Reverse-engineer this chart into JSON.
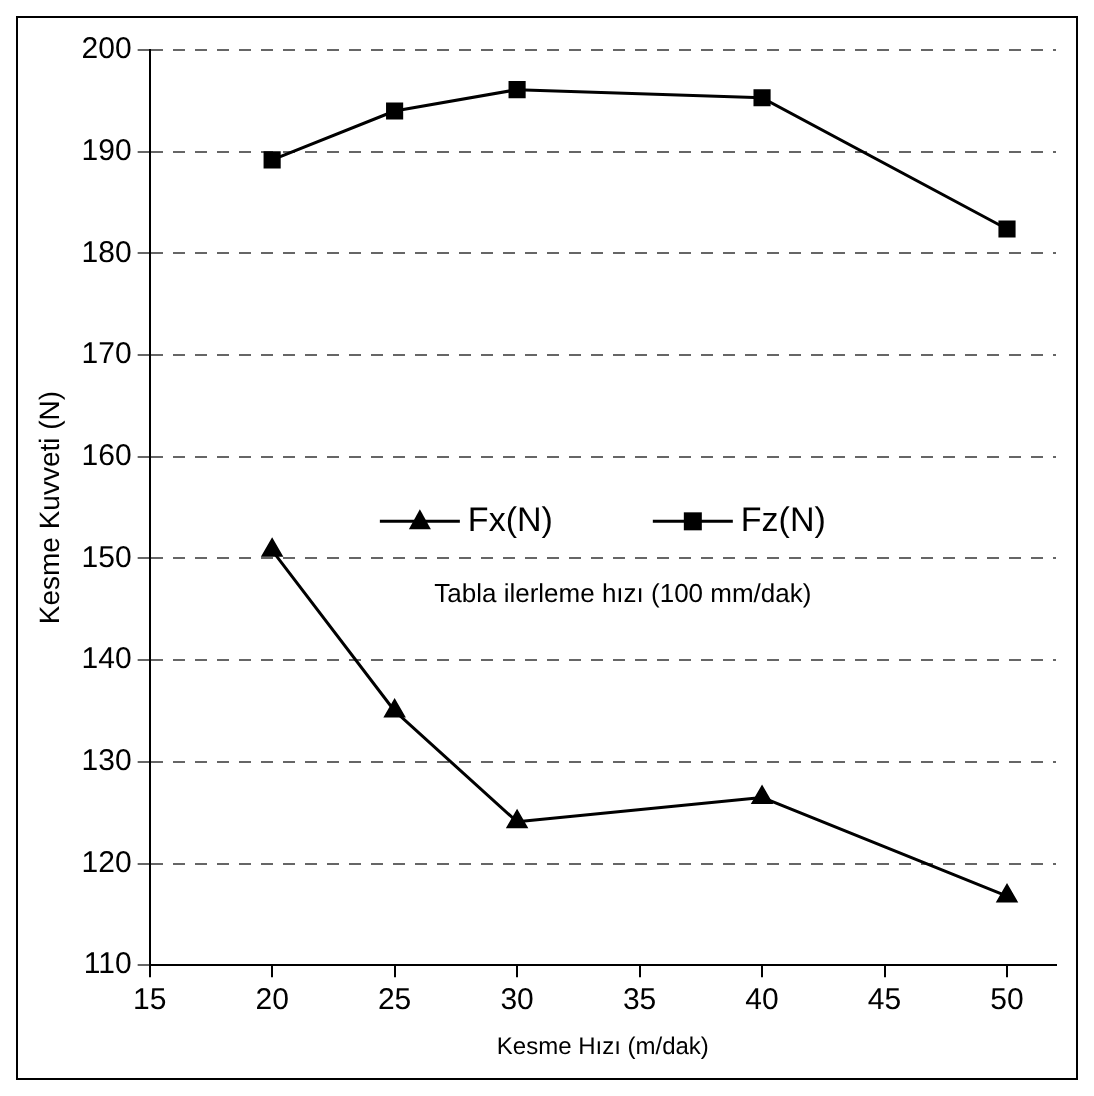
{
  "chart_data": {
    "type": "line",
    "xlabel": "Kesme Hızı (m/dak)",
    "ylabel": "Kesme Kuvveti (N)",
    "annotations": [
      "Tabla ilerleme hızı (100 mm/dak)"
    ],
    "series": [
      {
        "name": "Fx(N)",
        "color": "#000000",
        "marker": "triangle",
        "x": [
          20,
          25,
          30,
          40,
          50
        ],
        "values": [
          150.8,
          135,
          124.1,
          126.5,
          116.8
        ]
      },
      {
        "name": "Fz(N)",
        "color": "#000000",
        "marker": "square",
        "x": [
          20,
          25,
          30,
          40,
          50
        ],
        "values": [
          189.2,
          194,
          196.1,
          195.3,
          182.4
        ]
      }
    ],
    "xlim": [
      15,
      52
    ],
    "xticks": [
      15,
      20,
      25,
      30,
      35,
      40,
      45,
      50
    ],
    "ylim": [
      110,
      200
    ],
    "yticks": [
      110,
      120,
      130,
      140,
      150,
      160,
      170,
      180,
      190,
      200
    ],
    "grid": "y",
    "legend": "center",
    "line_style": "solid"
  }
}
